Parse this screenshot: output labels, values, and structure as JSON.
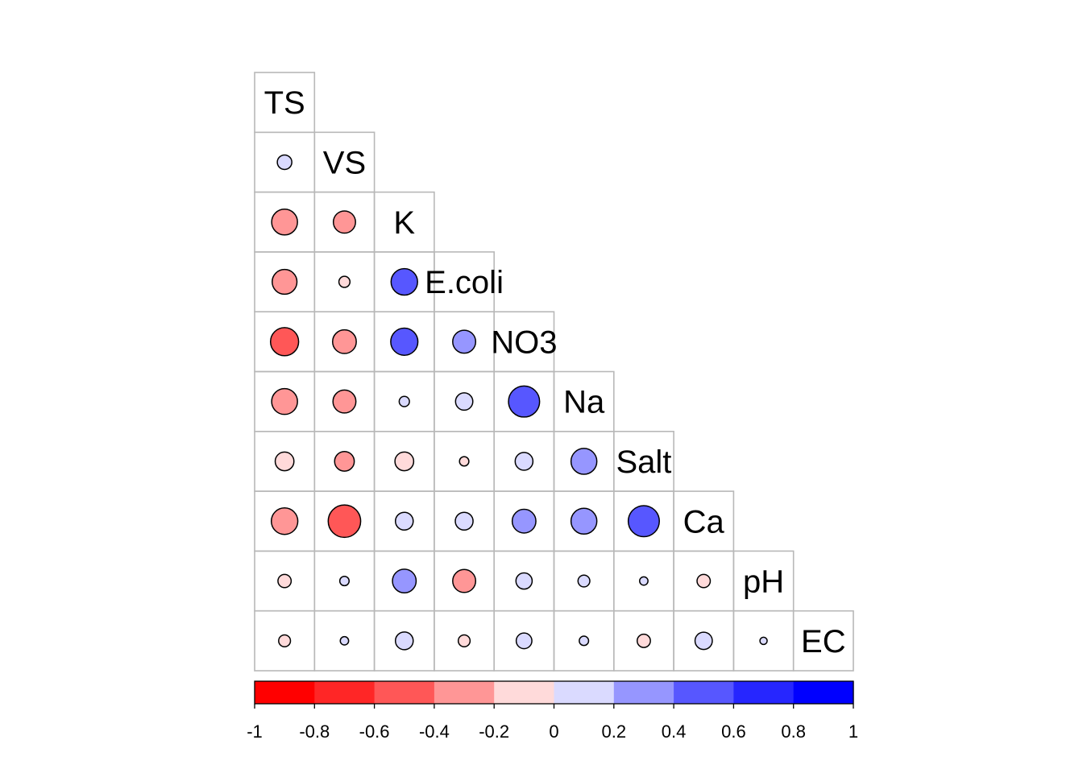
{
  "chart_data": {
    "type": "heatmap",
    "subtype": "correlation-circle-lower-triangle",
    "variables": [
      "TS",
      "VS",
      "K",
      "E.coli",
      "NO3",
      "Na",
      "Salt",
      "Ca",
      "pH",
      "EC"
    ],
    "matrix": [
      [
        1,
        0.12,
        -0.38,
        -0.35,
        -0.45,
        -0.38,
        -0.2,
        -0.4,
        -0.1,
        -0.08
      ],
      [
        0.12,
        1,
        -0.28,
        -0.07,
        -0.32,
        -0.3,
        -0.22,
        -0.6,
        0.05,
        0.04
      ],
      [
        -0.38,
        -0.28,
        1,
        0.4,
        0.42,
        0.06,
        -0.2,
        0.18,
        0.32,
        0.18
      ],
      [
        -0.35,
        -0.07,
        0.4,
        1,
        0.3,
        0.17,
        -0.05,
        0.18,
        -0.3,
        -0.08
      ],
      [
        -0.45,
        -0.32,
        0.42,
        0.3,
        1,
        0.55,
        0.18,
        0.32,
        0.15,
        0.14
      ],
      [
        -0.38,
        -0.3,
        0.06,
        0.17,
        0.55,
        1,
        0.38,
        0.38,
        0.08,
        0.05
      ],
      [
        -0.2,
        -0.22,
        -0.2,
        -0.05,
        0.18,
        0.38,
        1,
        0.55,
        0.04,
        -0.1
      ],
      [
        -0.4,
        -0.6,
        0.18,
        0.18,
        0.32,
        0.38,
        0.55,
        1,
        -0.1,
        0.17
      ],
      [
        -0.1,
        0.05,
        0.32,
        -0.3,
        0.15,
        0.08,
        0.04,
        -0.1,
        1,
        0.03
      ],
      [
        -0.08,
        0.04,
        0.18,
        -0.08,
        0.14,
        0.05,
        -0.1,
        0.17,
        0.03,
        1
      ]
    ],
    "colorbar": {
      "ticks": [
        "-1",
        "-0.8",
        "-0.6",
        "-0.4",
        "-0.2",
        "0",
        "0.2",
        "0.4",
        "0.6",
        "0.8",
        "1"
      ],
      "range": [
        -1,
        1
      ],
      "colors": [
        "#FF0000",
        "#FF2626",
        "#FF5757",
        "#FF9696",
        "#FFDADA",
        "#DADAFF",
        "#9696FF",
        "#5757FF",
        "#2626FF",
        "#0000FF"
      ]
    },
    "title": "",
    "xlabel": "",
    "ylabel": ""
  }
}
